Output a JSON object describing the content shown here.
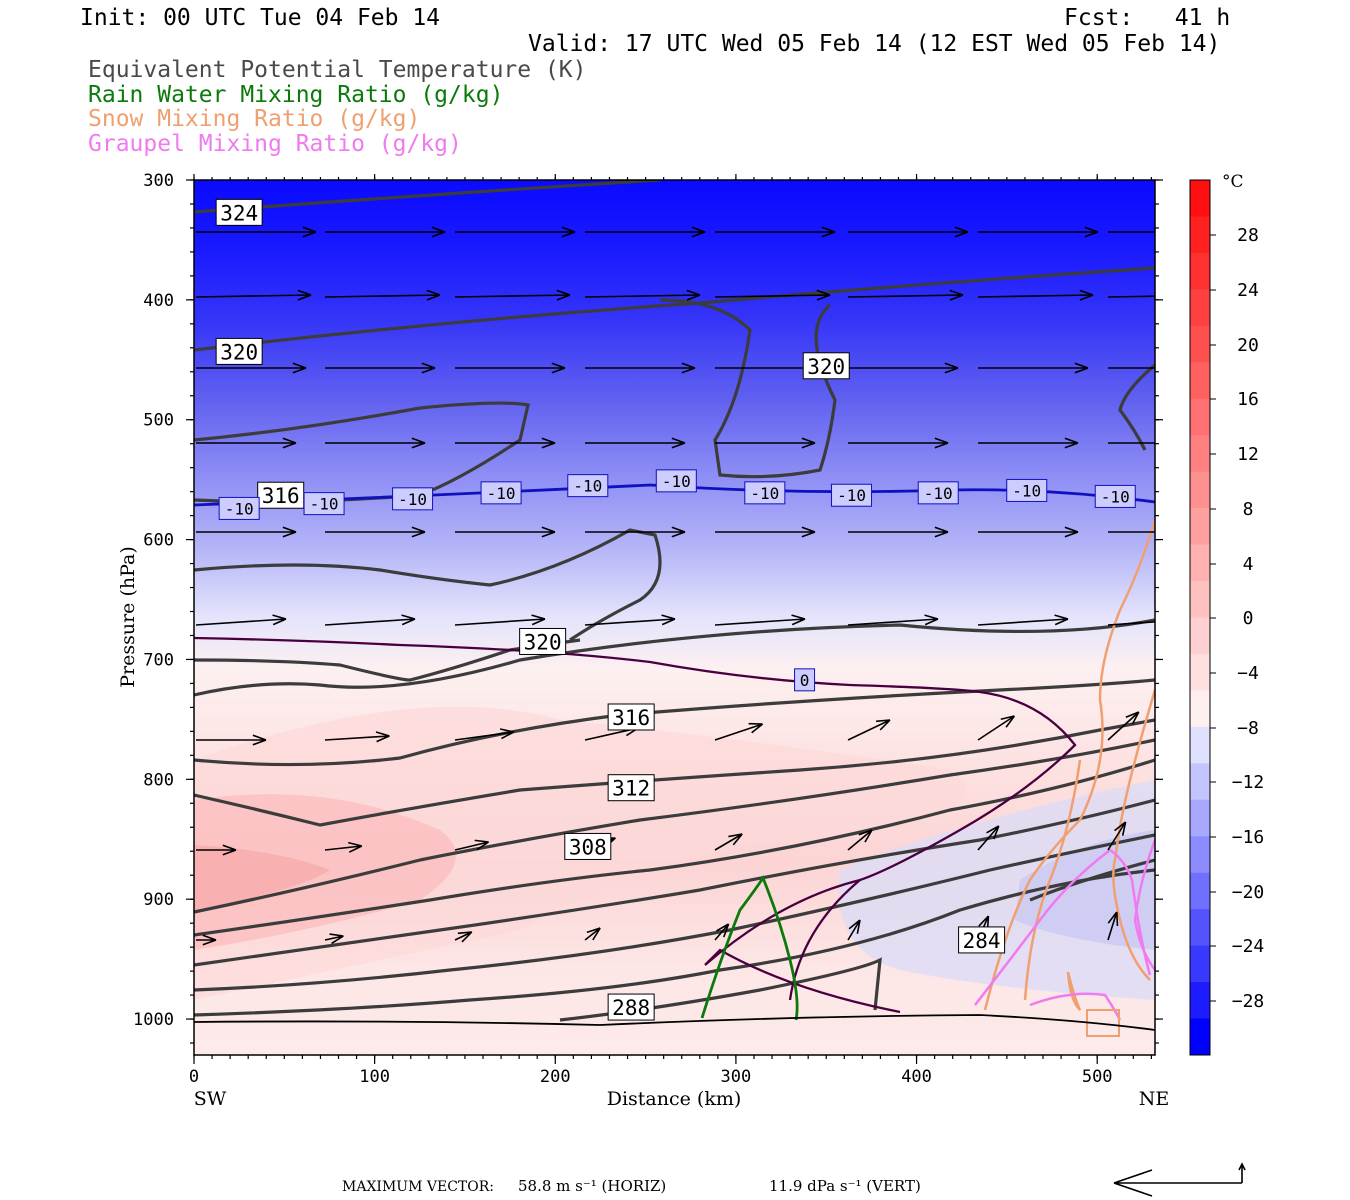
{
  "header": {
    "init": "Init: 00 UTC Tue 04 Feb 14",
    "fcst": "Fcst:   41 h",
    "valid": "Valid: 17 UTC Wed 05 Feb 14 (12 EST Wed 05 Feb 14)",
    "fields": [
      {
        "label": "Equivalent Potential Temperature (K)",
        "color": "#4a4a4a"
      },
      {
        "label": "Rain Water Mixing Ratio (g/kg)",
        "color": "#0b7a0b"
      },
      {
        "label": "Snow Mixing Ratio (g/kg)",
        "color": "#f0a070"
      },
      {
        "label": "Graupel Mixing Ratio (g/kg)",
        "color": "#f07af0"
      }
    ]
  },
  "chart_data": {
    "type": "contour cross-section",
    "xlabel": "Distance (km)",
    "ylabel": "Pressure (hPa)",
    "xlim": [
      0,
      532
    ],
    "ylim": [
      1030,
      300
    ],
    "x_ticks": [
      0,
      100,
      200,
      300,
      400,
      500
    ],
    "y_ticks": [
      300,
      400,
      500,
      600,
      700,
      800,
      900,
      1000
    ],
    "x_end_labels": {
      "left": "SW",
      "right": "NE"
    },
    "theta_e_labels": [
      {
        "text": "324",
        "x": 25,
        "p": 327
      },
      {
        "text": "320",
        "x": 25,
        "p": 443
      },
      {
        "text": "320",
        "x": 350,
        "p": 455
      },
      {
        "text": "316",
        "x": 48,
        "p": 563
      },
      {
        "text": "320",
        "x": 193,
        "p": 685
      },
      {
        "text": "316",
        "x": 242,
        "p": 748
      },
      {
        "text": "312",
        "x": 242,
        "p": 807
      },
      {
        "text": "308",
        "x": 218,
        "p": 856
      },
      {
        "text": "284",
        "x": 436,
        "p": 934
      },
      {
        "text": "288",
        "x": 242,
        "p": 990
      }
    ],
    "isotherm_labels": [
      {
        "text": "-10",
        "x": 25,
        "p": 574
      },
      {
        "text": "-10",
        "x": 72,
        "p": 570
      },
      {
        "text": "-10",
        "x": 121,
        "p": 566
      },
      {
        "text": "-10",
        "x": 170,
        "p": 561
      },
      {
        "text": "-10",
        "x": 218,
        "p": 555
      },
      {
        "text": "-10",
        "x": 267,
        "p": 551
      },
      {
        "text": "-10",
        "x": 316,
        "p": 561
      },
      {
        "text": "-10",
        "x": 364,
        "p": 563
      },
      {
        "text": "-10",
        "x": 412,
        "p": 561
      },
      {
        "text": "-10",
        "x": 461,
        "p": 559
      },
      {
        "text": "-10",
        "x": 510,
        "p": 564
      },
      {
        "text": "0",
        "x": 338,
        "p": 717
      }
    ],
    "colorbar": {
      "unit": "°C",
      "ticks": [
        "28",
        "24",
        "20",
        "16",
        "12",
        "8",
        "4",
        "0",
        "−4",
        "−8",
        "−12",
        "−16",
        "−20",
        "−24",
        "−28"
      ],
      "colors": [
        "#0000ff",
        "#1c1cff",
        "#3838ff",
        "#5454ff",
        "#7070ff",
        "#8c8cff",
        "#a8a8ff",
        "#c4c4ff",
        "#e0e0ff",
        "#fff0f0",
        "#ffe0e0",
        "#ffd0d0",
        "#ffc0c0",
        "#ffb0b0",
        "#ffa0a0",
        "#ff9090",
        "#ff8080",
        "#ff7070",
        "#ff6060",
        "#ff5050",
        "#ff4040",
        "#ff3030",
        "#ff2020",
        "#ff1010"
      ]
    }
  },
  "footer": {
    "max_vector_label": "MAXIMUM VECTOR:",
    "horiz": "58.8 m s⁻¹ (HORIZ)",
    "vert": "11.9 dPa s⁻¹ (VERT)"
  }
}
